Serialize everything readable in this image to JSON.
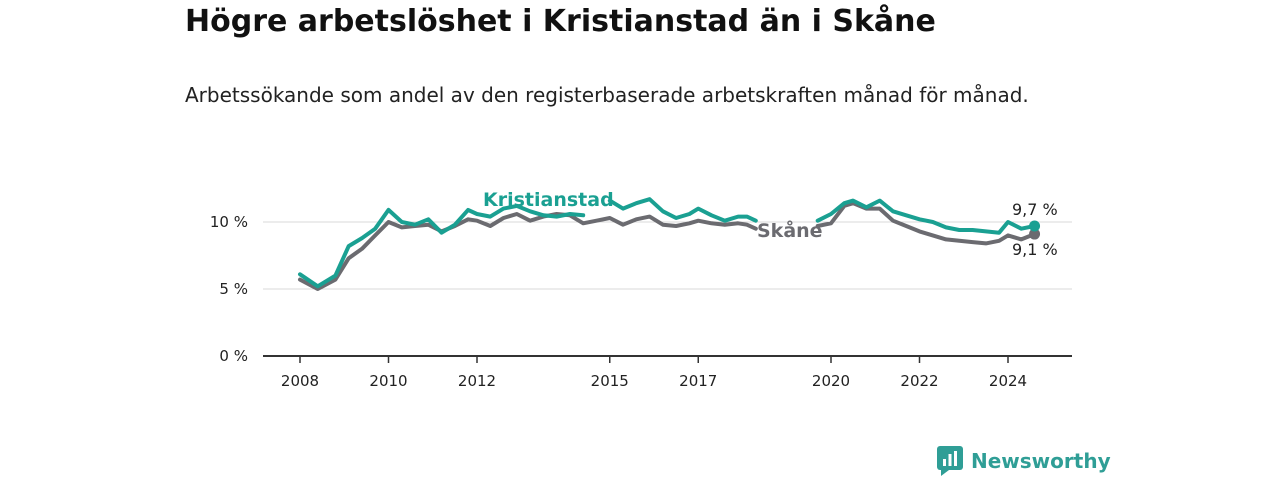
{
  "title": "Högre arbetslöshet i Kristianstad än i Skåne",
  "subtitle": "Arbetssökande som andel av den registerbaserade arbetskraften månad för månad.",
  "brand": {
    "name": "Newsworthy",
    "icon": "newsworthy-chart-logo-icon"
  },
  "colors": {
    "kristianstad": "#1aa092",
    "skane": "#6b6b70",
    "axis": "#333333",
    "grid": "#d9d9d9"
  },
  "chart_data": {
    "type": "line",
    "title": "Högre arbetslöshet i Kristianstad än i Skåne",
    "ylabel": "",
    "xlabel": "",
    "ylim": [
      0,
      12
    ],
    "xlim": [
      2007.2,
      2025.4
    ],
    "y_ticks": [
      0,
      5,
      10
    ],
    "y_tick_labels": [
      "0 %",
      "5 %",
      "10 %"
    ],
    "x_ticks": [
      2008,
      2010,
      2012,
      2015,
      2017,
      2020,
      2022,
      2024
    ],
    "x_tick_labels": [
      "2008",
      "2010",
      "2012",
      "2015",
      "2017",
      "2020",
      "2022",
      "2024"
    ],
    "series": [
      {
        "name": "Kristianstad",
        "label": "Kristianstad",
        "end_label": "9,7 %",
        "x": [
          2008.0,
          2008.4,
          2008.8,
          2009.1,
          2009.4,
          2009.7,
          2010.0,
          2010.3,
          2010.6,
          2010.9,
          2011.2,
          2011.5,
          2011.8,
          2012.0,
          2012.3,
          2012.6,
          2012.9,
          2013.2,
          2013.5,
          2013.8,
          2014.1,
          2014.4,
          null,
          2015.0,
          2015.3,
          2015.6,
          2015.9,
          2016.2,
          2016.5,
          2016.8,
          2017.0,
          2017.3,
          2017.6,
          2017.9,
          2018.1,
          2018.3,
          null,
          2019.7,
          2020.0,
          2020.3,
          2020.5,
          2020.8,
          2021.1,
          2021.4,
          2021.7,
          2022.0,
          2022.3,
          2022.6,
          2022.9,
          2023.2,
          2023.5,
          2023.8,
          2024.0,
          2024.3,
          2024.6
        ],
        "values": [
          6.1,
          5.2,
          6.0,
          8.2,
          8.8,
          9.5,
          10.9,
          10.0,
          9.8,
          10.2,
          9.2,
          9.8,
          10.9,
          10.6,
          10.4,
          11.0,
          11.2,
          10.8,
          10.5,
          10.4,
          10.6,
          10.5,
          null,
          11.6,
          11.0,
          11.4,
          11.7,
          10.8,
          10.3,
          10.6,
          11.0,
          10.5,
          10.1,
          10.4,
          10.4,
          10.1,
          null,
          10.1,
          10.6,
          11.4,
          11.6,
          11.1,
          11.6,
          10.8,
          10.5,
          10.2,
          10.0,
          9.6,
          9.4,
          9.4,
          9.3,
          9.2,
          10.0,
          9.5,
          9.7
        ]
      },
      {
        "name": "Skåne",
        "label": "Skåne",
        "end_label": "9,1 %",
        "x": [
          2008.0,
          2008.4,
          2008.8,
          2009.1,
          2009.4,
          2009.7,
          2010.0,
          2010.3,
          2010.6,
          2010.9,
          2011.2,
          2011.5,
          2011.8,
          2012.0,
          2012.3,
          2012.6,
          2012.9,
          2013.2,
          2013.5,
          2013.8,
          2014.1,
          2014.4,
          2014.7,
          2015.0,
          2015.3,
          2015.6,
          2015.9,
          2016.2,
          2016.5,
          2016.8,
          2017.0,
          2017.3,
          2017.6,
          2017.9,
          2018.1,
          2018.3,
          null,
          2019.7,
          2020.0,
          2020.3,
          2020.5,
          2020.8,
          2021.1,
          2021.4,
          2021.7,
          2022.0,
          2022.3,
          2022.6,
          2022.9,
          2023.2,
          2023.5,
          2023.8,
          2024.0,
          2024.3,
          2024.6
        ],
        "values": [
          5.7,
          5.0,
          5.7,
          7.3,
          8.0,
          9.0,
          10.0,
          9.6,
          9.7,
          9.8,
          9.3,
          9.7,
          10.2,
          10.1,
          9.7,
          10.3,
          10.6,
          10.1,
          10.4,
          10.6,
          10.5,
          9.9,
          10.1,
          10.3,
          9.8,
          10.2,
          10.4,
          9.8,
          9.7,
          9.9,
          10.1,
          9.9,
          9.8,
          9.9,
          9.8,
          9.5,
          null,
          9.7,
          9.9,
          11.2,
          11.4,
          11.0,
          11.0,
          10.1,
          9.7,
          9.3,
          9.0,
          8.7,
          8.6,
          8.5,
          8.4,
          8.6,
          9.0,
          8.7,
          9.1
        ]
      }
    ]
  }
}
